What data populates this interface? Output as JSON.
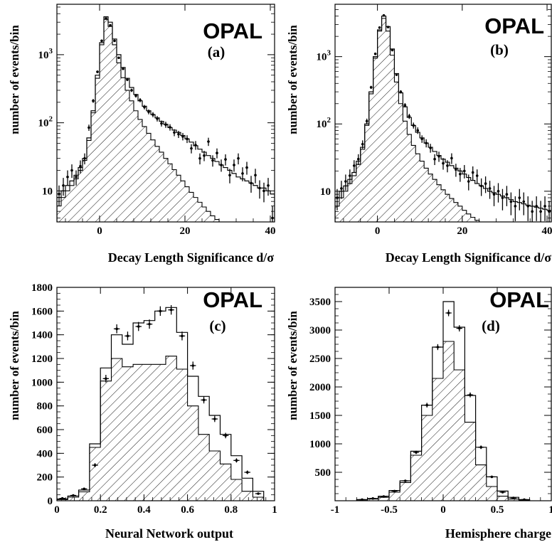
{
  "experiment": "OPAL",
  "colors": {
    "ink": "#000000",
    "background": "#ffffff"
  },
  "chart_data": [
    {
      "id": "a",
      "type": "histogram",
      "panel_label": "(a)",
      "experiment_label": "OPAL",
      "xlabel": "Decay Length Significance d/σ",
      "ylabel": "number of events/bin",
      "x_scale": "linear",
      "y_scale": "log",
      "xlim": [
        -10,
        41
      ],
      "ylim": [
        3.5,
        5500
      ],
      "x_ticks": [
        0,
        20,
        40
      ],
      "y_ticks": [
        {
          "value": 10,
          "label": "10"
        },
        {
          "value": 100,
          "label": "10 2"
        },
        {
          "value": 1000,
          "label": "10 3"
        }
      ],
      "bin_edges": [
        -10,
        -9,
        -8,
        -7,
        -6,
        -5,
        -4,
        -3,
        -2,
        -1,
        0,
        1,
        2,
        3,
        4,
        5,
        6,
        7,
        8,
        9,
        10,
        11,
        12,
        13,
        14,
        15,
        16,
        17,
        18,
        19,
        20,
        21,
        22,
        23,
        24,
        25,
        26,
        27,
        28,
        29,
        30,
        31,
        32,
        33,
        34,
        35,
        36,
        37,
        38,
        39,
        40,
        41
      ],
      "series": [
        {
          "name": "",
          "kind": "mc_total",
          "values": [
            8,
            10,
            12,
            14,
            17,
            22,
            30,
            60,
            150,
            500,
            1500,
            3600,
            3000,
            1700,
            1000,
            650,
            450,
            330,
            260,
            210,
            175,
            150,
            132,
            118,
            105,
            95,
            85,
            78,
            72,
            65,
            58,
            52,
            46,
            41,
            37,
            33,
            30,
            27,
            24,
            22,
            20,
            18,
            16,
            15,
            14,
            13,
            12,
            11,
            11,
            10,
            9
          ]
        },
        {
          "name": "",
          "kind": "mc_shaded",
          "values": [
            6,
            8,
            10,
            12,
            15,
            20,
            28,
            55,
            140,
            450,
            1400,
            3300,
            2600,
            1400,
            760,
            460,
            300,
            210,
            150,
            112,
            88,
            70,
            56,
            45,
            37,
            30,
            25,
            20.5,
            17,
            14,
            11.5,
            9.5,
            8,
            6.8,
            5.8,
            5,
            4.3,
            3.8,
            3.4,
            3,
            3,
            3,
            3,
            3,
            3,
            3,
            3,
            3,
            3,
            3,
            3
          ]
        },
        {
          "name": "",
          "kind": "data",
          "x": [
            -9.5,
            -8.5,
            -7.5,
            -6.5,
            -5.5,
            -4.5,
            -3.5,
            -2.5,
            -1.5,
            -0.5,
            0.5,
            1.5,
            2.5,
            3.5,
            4.5,
            5.5,
            6.5,
            7.5,
            8.5,
            9.5,
            10.5,
            11.5,
            12.5,
            13.5,
            14.5,
            15.5,
            16.5,
            17.5,
            18.5,
            19.5,
            20.5,
            21.5,
            22.5,
            23.5,
            24.5,
            25.5,
            26.5,
            27.5,
            28.5,
            29.5,
            30.5,
            31.5,
            32.5,
            33.5,
            34.5,
            35.5,
            36.5,
            37.5,
            38.5,
            39.5,
            40.5
          ],
          "y": [
            9,
            12,
            16,
            20,
            16,
            23,
            30,
            85,
            210,
            560,
            1600,
            3400,
            2700,
            1600,
            900,
            620,
            430,
            300,
            250,
            215,
            170,
            145,
            132,
            115,
            98,
            94,
            86,
            72,
            68,
            63,
            58,
            42,
            47,
            30,
            33,
            53,
            28,
            36,
            24,
            29,
            17,
            24,
            30,
            18,
            22,
            13,
            17,
            11,
            10,
            12,
            4
          ],
          "errors": [
            3,
            3.5,
            4,
            4.5,
            4,
            5,
            5.5,
            9,
            14,
            24,
            40,
            58,
            52,
            40,
            30,
            25,
            21,
            17,
            16,
            15,
            13,
            12,
            11.5,
            10.7,
            9.9,
            9.7,
            9.3,
            8.5,
            8.2,
            7.9,
            7.6,
            6.5,
            6.9,
            5.5,
            5.7,
            7.3,
            5.3,
            6,
            4.9,
            5.4,
            4.1,
            4.9,
            5.5,
            4.2,
            4.7,
            3.6,
            4.1,
            3.3,
            3.2,
            3.5,
            2
          ]
        }
      ]
    },
    {
      "id": "b",
      "type": "histogram",
      "panel_label": "(b)",
      "experiment_label": "OPAL",
      "xlabel": "Decay Length Significance d/σ",
      "ylabel": "number of events/bin",
      "x_scale": "linear",
      "y_scale": "log",
      "xlim": [
        -10,
        41
      ],
      "ylim": [
        3.5,
        6000
      ],
      "x_ticks": [
        0,
        20,
        40
      ],
      "y_ticks": [
        {
          "value": 10,
          "label": "10"
        },
        {
          "value": 100,
          "label": "10 2"
        },
        {
          "value": 1000,
          "label": "10 3"
        }
      ],
      "bin_edges": [
        -10,
        -9,
        -8,
        -7,
        -6,
        -5,
        -4,
        -3,
        -2,
        -1,
        0,
        1,
        2,
        3,
        4,
        5,
        6,
        7,
        8,
        9,
        10,
        11,
        12,
        13,
        14,
        15,
        16,
        17,
        18,
        19,
        20,
        21,
        22,
        23,
        24,
        25,
        26,
        27,
        28,
        29,
        30,
        31,
        32,
        33,
        34,
        35,
        36,
        37,
        38,
        39,
        40,
        41
      ],
      "series": [
        {
          "name": "",
          "kind": "mc_total",
          "values": [
            8,
            10,
            12,
            15,
            19,
            28,
            45,
            100,
            300,
            1000,
            2500,
            4000,
            2800,
            1300,
            560,
            290,
            180,
            125,
            95,
            75,
            62,
            52,
            45,
            39,
            34,
            30,
            27,
            24,
            22,
            20,
            18,
            16,
            14.5,
            13,
            12,
            11,
            10,
            9.5,
            9,
            8.5,
            8,
            7.5,
            7,
            6.8,
            6.5,
            6.2,
            6,
            5.8,
            5.6,
            5.4,
            5.2
          ]
        },
        {
          "name": "",
          "kind": "mc_shaded",
          "values": [
            6,
            8,
            10,
            13,
            17,
            25,
            42,
            95,
            280,
            950,
            2400,
            3700,
            2400,
            1050,
            420,
            200,
            110,
            70,
            48,
            36,
            28,
            22,
            18,
            15,
            12.5,
            10.5,
            9,
            7.8,
            6.8,
            6,
            5.2,
            4.6,
            4.1,
            3.7,
            3.5,
            3.5,
            3.5,
            3.5,
            3.5,
            3.5,
            3.5,
            3.5,
            3.5,
            3.5,
            3.5,
            3.5,
            3.5,
            3.5,
            3.5,
            3.5,
            3.5
          ]
        },
        {
          "name": "",
          "kind": "data",
          "x": [
            -9.5,
            -8.5,
            -7.5,
            -6.5,
            -5.5,
            -4.5,
            -3.5,
            -2.5,
            -1.5,
            -0.5,
            0.5,
            1.5,
            2.5,
            3.5,
            4.5,
            5.5,
            6.5,
            7.5,
            8.5,
            9.5,
            10.5,
            11.5,
            12.5,
            13.5,
            14.5,
            15.5,
            16.5,
            17.5,
            18.5,
            19.5,
            20.5,
            21.5,
            22.5,
            23.5,
            24.5,
            25.5,
            26.5,
            27.5,
            28.5,
            29.5,
            30.5,
            31.5,
            32.5,
            33.5,
            34.5,
            35.5,
            36.5,
            37.5,
            38.5,
            39.5,
            40.5
          ],
          "y": [
            8,
            11,
            14,
            17,
            24,
            30,
            50,
            110,
            350,
            1100,
            2700,
            4100,
            2750,
            1250,
            540,
            300,
            190,
            130,
            95,
            80,
            60,
            52,
            44,
            30,
            33,
            26,
            24,
            31,
            21,
            18,
            20,
            14,
            19,
            17,
            12,
            13,
            11,
            9,
            10,
            8,
            9,
            7,
            6,
            8,
            7,
            6,
            5,
            6,
            5,
            6,
            5
          ],
          "errors": [
            2.8,
            3.3,
            3.7,
            4.1,
            4.9,
            5.5,
            7,
            10,
            19,
            33,
            52,
            64,
            52,
            35,
            23,
            17,
            14,
            11.4,
            9.7,
            9,
            7.7,
            7.2,
            6.6,
            5.5,
            5.7,
            5.1,
            4.9,
            5.6,
            4.6,
            4.2,
            4.5,
            3.7,
            4.4,
            4.1,
            3.5,
            3.6,
            3.3,
            3,
            3.2,
            2.8,
            3,
            2.6,
            2.4,
            2.8,
            2.6,
            2.4,
            2.2,
            2.4,
            2.2,
            2.4,
            2.2
          ]
        }
      ]
    },
    {
      "id": "c",
      "type": "histogram",
      "panel_label": "(c)",
      "experiment_label": "OPAL",
      "xlabel": "Neural Network output",
      "ylabel": "number of events/bin",
      "x_scale": "linear",
      "y_scale": "linear",
      "xlim": [
        0,
        1
      ],
      "ylim": [
        0,
        1800
      ],
      "x_ticks": [
        0,
        0.2,
        0.4,
        0.6,
        0.8,
        1
      ],
      "x_tick_labels": [
        "0",
        "0.2",
        "0.4",
        "0.6",
        "0.8",
        "1"
      ],
      "y_ticks": [
        0,
        200,
        400,
        600,
        800,
        1000,
        1200,
        1400,
        1600,
        1800
      ],
      "bin_edges": [
        0,
        0.05,
        0.1,
        0.15,
        0.2,
        0.25,
        0.3,
        0.35,
        0.4,
        0.45,
        0.5,
        0.55,
        0.6,
        0.65,
        0.7,
        0.75,
        0.8,
        0.85,
        0.9,
        0.95
      ],
      "series": [
        {
          "name": "",
          "kind": "mc_total",
          "values": [
            15,
            40,
            90,
            480,
            1120,
            1400,
            1320,
            1500,
            1520,
            1600,
            1630,
            1420,
            1050,
            880,
            720,
            560,
            380,
            190,
            80
          ]
        },
        {
          "name": "",
          "kind": "mc_shaded",
          "values": [
            10,
            30,
            75,
            450,
            1010,
            1200,
            1130,
            1150,
            1150,
            1150,
            1220,
            1110,
            800,
            560,
            420,
            310,
            180,
            80,
            30
          ]
        },
        {
          "name": "",
          "kind": "data",
          "x": [
            0.025,
            0.075,
            0.125,
            0.175,
            0.225,
            0.275,
            0.325,
            0.375,
            0.425,
            0.475,
            0.525,
            0.575,
            0.625,
            0.675,
            0.725,
            0.775,
            0.825,
            0.875,
            0.925
          ],
          "y": [
            20,
            45,
            100,
            300,
            1030,
            1450,
            1390,
            1470,
            1490,
            1600,
            1610,
            1390,
            1140,
            850,
            690,
            550,
            340,
            240,
            60
          ],
          "errors": [
            5,
            7,
            10,
            17,
            32,
            38,
            37,
            38,
            39,
            40,
            40,
            37,
            34,
            29,
            26,
            23,
            18,
            15,
            8
          ]
        }
      ]
    },
    {
      "id": "d",
      "type": "histogram",
      "panel_label": "(d)",
      "experiment_label": "OPAL",
      "xlabel": "Hemisphere charge",
      "ylabel": "number of events/bin",
      "x_scale": "linear",
      "y_scale": "linear",
      "xlim": [
        -1,
        1
      ],
      "ylim": [
        0,
        3750
      ],
      "x_ticks": [
        -1,
        -0.5,
        0,
        0.5,
        1
      ],
      "x_tick_labels": [
        "-1",
        "-0.5",
        "0",
        "0.5",
        "1"
      ],
      "y_ticks": [
        500,
        1000,
        1500,
        2000,
        2500,
        3000,
        3500
      ],
      "bin_edges": [
        -0.8,
        -0.7,
        -0.6,
        -0.5,
        -0.4,
        -0.3,
        -0.2,
        -0.1,
        0,
        0.1,
        0.2,
        0.3,
        0.4,
        0.5,
        0.6,
        0.7,
        0.8
      ],
      "series": [
        {
          "name": "",
          "kind": "mc_total",
          "values": [
            20,
            40,
            80,
            180,
            350,
            870,
            1680,
            2700,
            3500,
            3050,
            1850,
            940,
            420,
            170,
            60,
            20
          ]
        },
        {
          "name": "",
          "kind": "mc_shaded",
          "values": [
            15,
            30,
            60,
            150,
            320,
            800,
            1500,
            2150,
            2800,
            2300,
            1380,
            630,
            250,
            80,
            30,
            10
          ]
        },
        {
          "name": "",
          "kind": "data",
          "x": [
            -0.75,
            -0.65,
            -0.55,
            -0.45,
            -0.35,
            -0.25,
            -0.15,
            -0.05,
            0.05,
            0.15,
            0.25,
            0.35,
            0.45,
            0.55,
            0.65,
            0.75
          ],
          "y": [
            20,
            40,
            75,
            170,
            350,
            850,
            1680,
            2700,
            3300,
            3030,
            1860,
            940,
            420,
            150,
            50,
            20
          ],
          "errors": [
            4,
            6,
            9,
            13,
            19,
            29,
            41,
            52,
            57,
            55,
            43,
            31,
            20,
            12,
            7,
            4
          ]
        }
      ]
    }
  ]
}
